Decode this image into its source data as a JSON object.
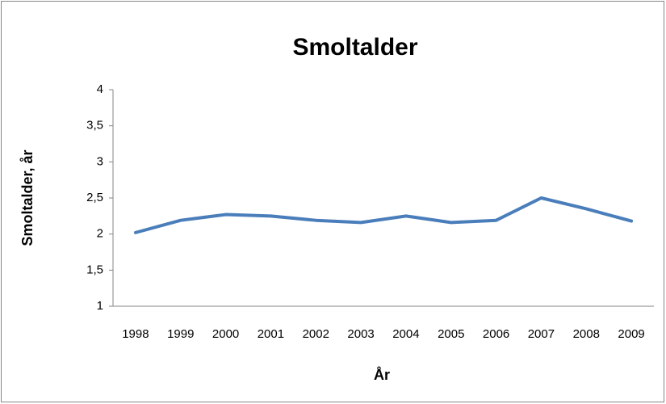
{
  "chart_data": {
    "type": "line",
    "title": "Smoltalder",
    "x_label": "År",
    "y_label": "Smoltalder, år",
    "categories": [
      "1998",
      "1999",
      "2000",
      "2001",
      "2002",
      "2003",
      "2004",
      "2005",
      "2006",
      "2007",
      "2008",
      "2009"
    ],
    "series": [
      {
        "name": "Smoltalder",
        "color": "#4a7ebb",
        "values": [
          2.02,
          2.19,
          2.27,
          2.25,
          2.19,
          2.16,
          2.25,
          2.16,
          2.19,
          2.5,
          2.35,
          2.18
        ]
      }
    ],
    "ylim": [
      1,
      4
    ],
    "yticks": [
      1,
      {
        "value": 1.5,
        "label": "1,5"
      },
      2,
      {
        "value": 2.5,
        "label": "2,5"
      },
      3,
      {
        "value": 3.5,
        "label": "3,5"
      },
      4
    ],
    "grid": false
  }
}
